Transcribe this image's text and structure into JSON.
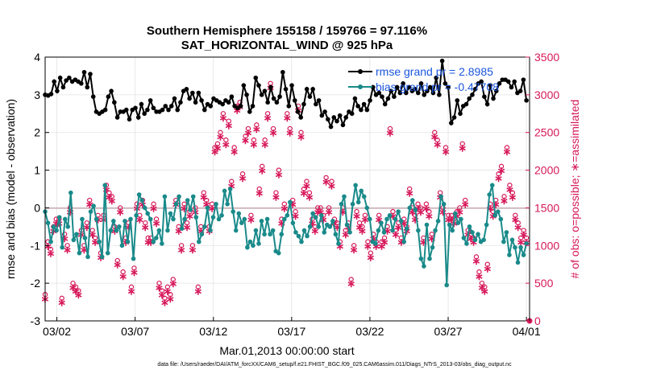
{
  "chart_data": {
    "type": "line",
    "title_line1": "Southern Hemisphere 155158 / 159766 = 97.116%",
    "title_line2": "SAT_HORIZONTAL_WIND @ 925 hPa",
    "xlabel": "Mar.01,2013 00:00:00 start",
    "ylabel_left": "rmse and bias (model - observation)",
    "ylabel_right": "# of obs: o=possible; ∗=assimilated",
    "ylim_left": [
      -3,
      4
    ],
    "ylim_right": [
      0,
      3500
    ],
    "xlim": [
      1.25,
      32.2
    ],
    "x_ticks": [
      {
        "value": 2,
        "label": "03/02"
      },
      {
        "value": 7,
        "label": "03/07"
      },
      {
        "value": 12,
        "label": "03/12"
      },
      {
        "value": 17,
        "label": "03/17"
      },
      {
        "value": 22,
        "label": "03/22"
      },
      {
        "value": 27,
        "label": "03/27"
      },
      {
        "value": 32,
        "label": "04/01"
      }
    ],
    "y_ticks_left": [
      "-3",
      "-2",
      "-1",
      "0",
      "1",
      "2",
      "3",
      "4"
    ],
    "y_ticks_right": [
      "0",
      "500",
      "1000",
      "1500",
      "2000",
      "2500",
      "3000",
      "3500"
    ],
    "legend": [
      {
        "label": "rmse grand pr = 2.8985",
        "color": "#000000"
      },
      {
        "label": "bias grand pr = -0.47708",
        "color": "#1a8a8a"
      }
    ],
    "colors": {
      "rmse": "#000000",
      "bias": "#1a8a8a",
      "obs": "#d6185a",
      "zero_line": "#c0a0a8",
      "grid": "#e2e2e2"
    },
    "rmse": [
      3.0,
      2.98,
      3.02,
      3.35,
      3.1,
      3.45,
      3.2,
      3.38,
      3.45,
      3.35,
      3.4,
      3.35,
      3.3,
      3.6,
      3.2,
      3.55,
      2.95,
      2.55,
      2.5,
      2.55,
      2.6,
      2.95,
      3.1,
      2.8,
      2.4,
      2.55,
      2.55,
      2.6,
      2.35,
      2.6,
      2.65,
      2.4,
      2.75,
      2.5,
      2.6,
      2.85,
      2.65,
      2.55,
      2.55,
      2.6,
      2.7,
      2.6,
      2.7,
      2.9,
      2.6,
      2.8,
      3.1,
      3.15,
      2.9,
      3.05,
      2.8,
      3.05,
      2.85,
      2.6,
      2.75,
      2.7,
      2.9,
      2.85,
      2.8,
      2.75,
      2.85,
      2.8,
      2.95,
      2.7,
      2.65,
      2.7,
      3.25,
      3.0,
      2.55,
      2.7,
      3.45,
      3.25,
      3.0,
      3.1,
      2.8,
      3.2,
      2.9,
      2.8,
      2.95,
      3.6,
      3.15,
      2.7,
      3.25,
      2.85,
      2.55,
      2.4,
      2.75,
      3.15,
      2.95,
      3.15,
      2.75,
      2.85,
      2.45,
      2.55,
      2.35,
      2.15,
      2.4,
      2.3,
      2.45,
      2.2,
      2.4,
      2.55,
      2.5,
      2.9,
      2.7,
      2.6,
      2.75,
      2.6,
      2.85,
      3.2,
      3.0,
      3.05,
      2.95,
      2.75,
      2.9,
      3.1,
      2.95,
      3.2,
      3.05,
      3.3,
      3.05,
      3.2,
      3.1,
      3.15,
      3.05,
      3.3,
      3.0,
      3.1,
      3.2,
      3.05,
      3.45,
      3.0,
      3.9,
      3.3,
      3.2,
      2.25,
      2.4,
      2.85,
      2.5,
      2.7,
      2.75,
      2.9,
      3.0,
      3.15,
      3.3,
      3.35,
      2.95,
      2.75,
      3.25,
      2.9,
      3.1,
      3.3,
      3.4,
      3.4,
      3.35,
      3.2,
      3.35,
      3.05,
      3.1,
      3.4,
      2.85
    ],
    "bias": [
      -0.1,
      -0.4,
      -0.9,
      -0.5,
      -0.6,
      -0.25,
      -1.05,
      -0.3,
      -0.5,
      0.4,
      -0.85,
      -0.7,
      -1.2,
      -0.3,
      -0.8,
      -1.3,
      -0.1,
      0.05,
      -0.3,
      -0.9,
      -1.3,
      0.6,
      -1.2,
      -0.6,
      -0.35,
      -0.6,
      -0.5,
      -1.0,
      -0.35,
      -0.9,
      -0.3,
      -1.35,
      -0.2,
      0.35,
      0.2,
      0.0,
      -0.15,
      -0.3,
      -0.9,
      -0.8,
      -0.6,
      -0.95,
      0.3,
      -0.6,
      -0.15,
      -0.3,
      0.1,
      0.3,
      -0.55,
      -0.3,
      0.2,
      -0.05,
      0.3,
      -0.25,
      -0.9,
      -0.7,
      -0.5,
      0.0,
      -0.6,
      -0.25,
      0.1,
      -0.3,
      -0.2,
      0.45,
      0.1,
      0.5,
      -0.1,
      -0.6,
      -0.15,
      -0.4,
      -0.3,
      -1.05,
      -0.9,
      -1.0,
      -0.6,
      -0.95,
      -0.35,
      -0.7,
      -0.3,
      -0.7,
      -0.6,
      -1.15,
      -1.2,
      -0.7,
      -0.3,
      -0.2,
      0.15,
      -0.4,
      -0.65,
      -0.75,
      -0.9,
      -0.6,
      -0.75,
      -0.5,
      -0.15,
      -0.25,
      -0.5,
      -0.2,
      -0.65,
      -0.45,
      -0.5,
      -0.35,
      -0.7,
      -0.95,
      0.1,
      0.3,
      -0.45,
      -0.65,
      0.1,
      0.6,
      0.15,
      0.45,
      0.3,
      0.0,
      -0.3,
      -0.9,
      -0.95,
      -0.6,
      -0.4,
      -0.65,
      -0.3,
      -0.2,
      -0.6,
      -0.3,
      -0.1,
      -0.35,
      -0.9,
      -0.55,
      0.0,
      0.2,
      -0.05,
      -0.6,
      -1.35,
      -1.55,
      -0.45,
      -1.35,
      -1.05,
      -0.6,
      -0.35,
      0.3,
      0.1,
      -2.05,
      -0.45,
      -0.6,
      -0.15,
      -0.4,
      -0.3,
      -0.8,
      -0.95,
      -0.5,
      -0.65,
      -0.85,
      -0.7,
      -0.9,
      -0.85,
      -0.45,
      0.35,
      0.6,
      -0.2,
      -0.1,
      -0.3,
      -0.9,
      -0.65,
      -1.25,
      -0.85,
      -1.05,
      -1.45,
      -1.05,
      -1.25,
      -0.95
    ],
    "obs_possible": [
      350,
      1050,
      950,
      1250,
      1350,
      1350,
      300,
      1150,
      1000,
      1500,
      500,
      450,
      400,
      1200,
      1000,
      1300,
      1600,
      1200,
      1100,
      1400,
      900,
      1400,
      1800,
      1700,
      1650,
      1250,
      800,
      1500,
      650,
      1100,
      1300,
      450,
      700,
      1550,
      1400,
      1600,
      1300,
      1100,
      1100,
      1550,
      1350,
      500,
      400,
      300,
      450,
      350,
      550,
      1600,
      1250,
      1000,
      1550,
      1300,
      1450,
      1000,
      1500,
      450,
      1250,
      1700,
      1600,
      1250,
      1550,
      2300,
      2350,
      2500,
      2750,
      2400,
      2650,
      1850,
      2300,
      2850,
      2900,
      1950,
      2450,
      2550,
      1400,
      2400,
      2600,
      1750,
      2050,
      2400,
      2750,
      3150,
      2550,
      1700,
      2000,
      1350,
      1550,
      2750,
      2550,
      1600,
      1450,
      2850,
      2500,
      1750,
      1850,
      1700,
      1350,
      1250,
      1500,
      1500,
      1400,
      1900,
      1500,
      1850,
      1350,
      1300,
      1050,
      1500,
      1200,
      1300,
      550,
      1000,
      1450,
      1300,
      1250,
      1400,
      1050,
      900,
      1150,
      1050,
      1400,
      1050,
      1100,
      1250,
      2550,
      1450,
      1200,
      1300,
      1100,
      1350,
      1250,
      1750,
      1500,
      1400,
      1550,
      1500,
      1100,
      1550,
      1450,
      1150,
      2500,
      2400,
      1700,
      1500,
      2300,
      1400,
      1400,
      1350,
      1450,
      1500,
      2350,
      1600,
      1200,
      1150,
      1100,
      850,
      650,
      500,
      450,
      750,
      1550,
      1450,
      1600,
      1950,
      2050,
      1650,
      2300,
      1800,
      1700,
      1400,
      1300,
      1100,
      1200,
      1100
    ],
    "obs_assimilated": [
      300,
      1000,
      900,
      1200,
      1300,
      1300,
      250,
      1100,
      950,
      1450,
      450,
      400,
      350,
      1150,
      950,
      1250,
      1550,
      1150,
      1050,
      1350,
      850,
      1350,
      1750,
      1650,
      1600,
      1200,
      750,
      1450,
      600,
      1050,
      1250,
      400,
      650,
      1500,
      1350,
      1550,
      1250,
      1050,
      1050,
      1500,
      1300,
      450,
      350,
      250,
      400,
      300,
      500,
      1550,
      1200,
      950,
      1500,
      1250,
      1400,
      950,
      1450,
      400,
      1200,
      1650,
      1550,
      1200,
      1500,
      2250,
      2300,
      2450,
      2700,
      2350,
      2600,
      1800,
      2250,
      2800,
      2850,
      1900,
      2400,
      2500,
      1350,
      2350,
      2550,
      1700,
      2000,
      2350,
      2700,
      3100,
      2500,
      1650,
      1950,
      1300,
      1500,
      2700,
      2500,
      1550,
      1400,
      2800,
      2450,
      1700,
      1800,
      1650,
      1300,
      1200,
      1450,
      1450,
      1350,
      1850,
      1450,
      1800,
      1300,
      1250,
      1000,
      1450,
      1150,
      1250,
      500,
      950,
      1400,
      1250,
      1200,
      1350,
      1000,
      850,
      1100,
      1000,
      1350,
      1000,
      1050,
      1200,
      2500,
      1400,
      1150,
      1250,
      1050,
      1300,
      1200,
      1700,
      1450,
      1350,
      1500,
      1450,
      1050,
      1500,
      1400,
      1100,
      2450,
      2350,
      1650,
      1450,
      2250,
      1350,
      1350,
      1300,
      1400,
      1450,
      2300,
      1550,
      1150,
      1100,
      1050,
      800,
      600,
      450,
      400,
      700,
      1500,
      1400,
      1550,
      1900,
      2000,
      1600,
      2250,
      1750,
      1650,
      1350,
      1250,
      1050,
      1150,
      1050
    ],
    "footer": "data file: /Users/raeder/DAI/ATM_forcXX/CAM6_setup/f.e21.FHIST_BGC.f09_025.CAM6assim.011/Diags_NTrS_2013-03/obs_diag_output.nc"
  }
}
